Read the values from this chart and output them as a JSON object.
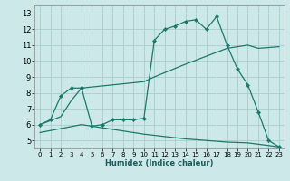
{
  "title": "",
  "xlabel": "Humidex (Indice chaleur)",
  "xlim": [
    -0.5,
    23.5
  ],
  "ylim": [
    4.5,
    13.5
  ],
  "xticks": [
    0,
    1,
    2,
    3,
    4,
    5,
    6,
    7,
    8,
    9,
    10,
    11,
    12,
    13,
    14,
    15,
    16,
    17,
    18,
    19,
    20,
    21,
    22,
    23
  ],
  "yticks": [
    5,
    6,
    7,
    8,
    9,
    10,
    11,
    12,
    13
  ],
  "background_color": "#cde8e8",
  "grid_color": "#aacccc",
  "line_color": "#1a7a6a",
  "line1_x": [
    0,
    1,
    2,
    3,
    4,
    4,
    5,
    6,
    7,
    8,
    9,
    10,
    11,
    12,
    13,
    14,
    15,
    16,
    17,
    18,
    19,
    20,
    21,
    22,
    23
  ],
  "line1_y": [
    6.0,
    6.3,
    7.8,
    8.3,
    8.3,
    8.3,
    5.9,
    6.0,
    6.3,
    6.3,
    6.3,
    6.4,
    11.3,
    12.0,
    12.2,
    12.5,
    12.6,
    12.0,
    12.8,
    11.0,
    9.5,
    8.5,
    6.8,
    5.0,
    4.6
  ],
  "line2_x": [
    0,
    2,
    3,
    4,
    10,
    11,
    14,
    18,
    20,
    21,
    23
  ],
  "line2_y": [
    6.0,
    6.5,
    7.5,
    8.3,
    8.7,
    9.0,
    9.8,
    10.8,
    11.0,
    10.8,
    10.9
  ],
  "line3_x": [
    0,
    4,
    10,
    14,
    18,
    20,
    23
  ],
  "line3_y": [
    5.5,
    6.0,
    5.4,
    5.1,
    4.9,
    4.85,
    4.6
  ]
}
